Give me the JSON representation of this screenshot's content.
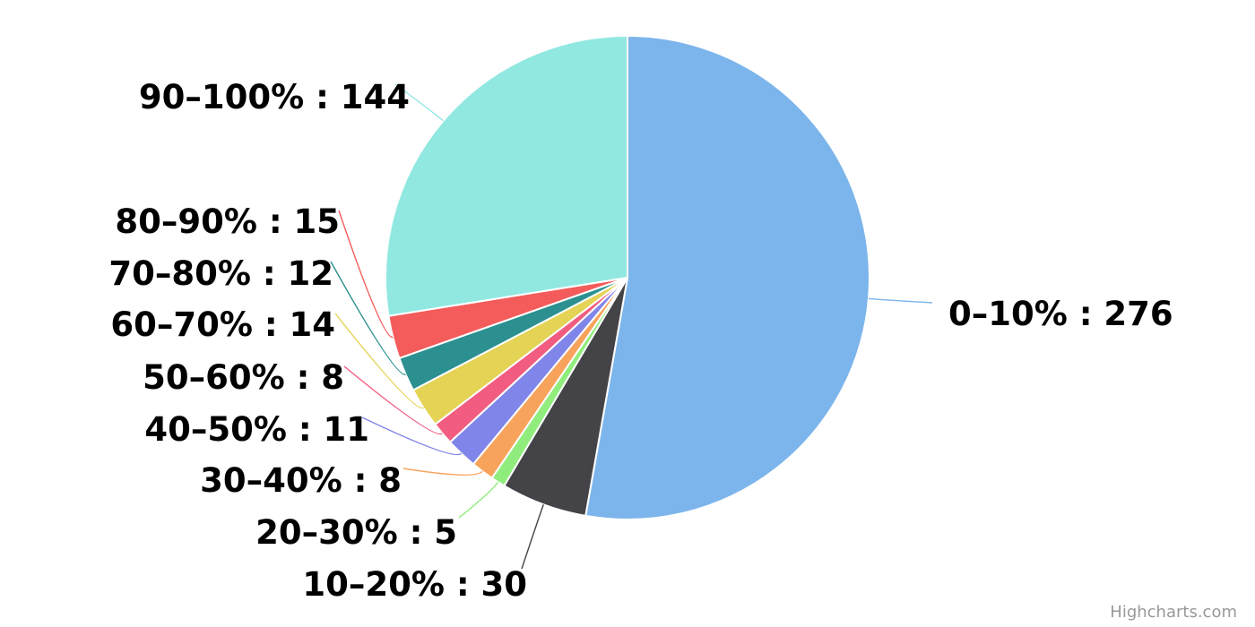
{
  "chart_data": {
    "type": "pie",
    "title": "",
    "series": [
      {
        "data": [
          {
            "name": "0-10%",
            "y": 276,
            "color": "#7cb5ec"
          },
          {
            "name": "10-20%",
            "y": 30,
            "color": "#434348"
          },
          {
            "name": "20-30%",
            "y": 5,
            "color": "#90ed7d"
          },
          {
            "name": "30-40%",
            "y": 8,
            "color": "#f7a35c"
          },
          {
            "name": "40-50%",
            "y": 11,
            "color": "#8085e9"
          },
          {
            "name": "50-60%",
            "y": 8,
            "color": "#f15c80"
          },
          {
            "name": "60-70%",
            "y": 14,
            "color": "#e4d354"
          },
          {
            "name": "70-80%",
            "y": 12,
            "color": "#2b908f"
          },
          {
            "name": "80-90%",
            "y": 15,
            "color": "#f45b5b"
          },
          {
            "name": "90-100%",
            "y": 144,
            "color": "#91e8e1"
          }
        ]
      }
    ]
  },
  "credits": {
    "text": "Highcharts.com"
  }
}
